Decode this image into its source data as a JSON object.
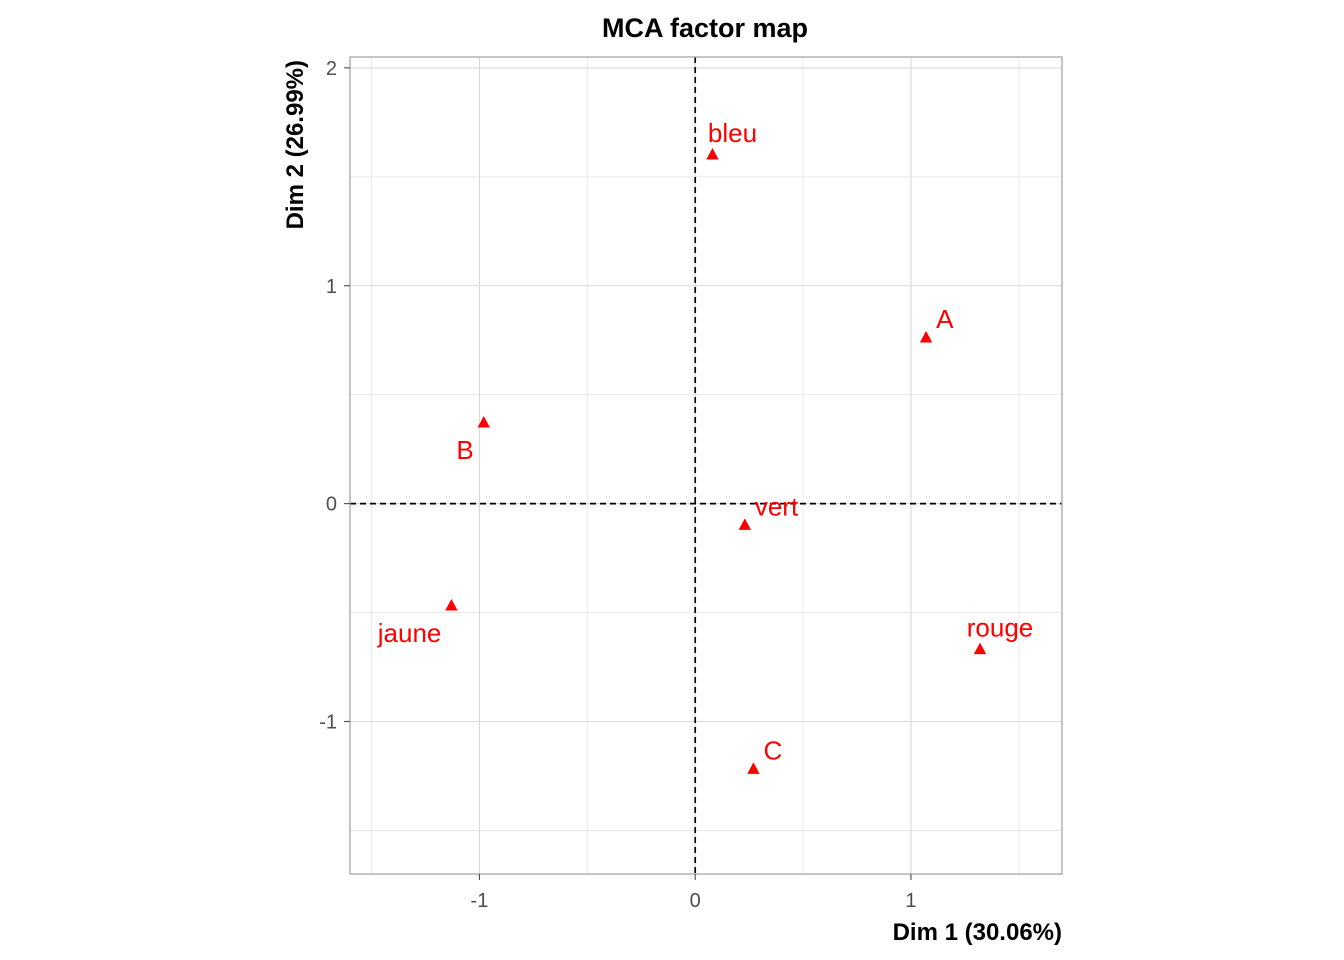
{
  "chart_data": {
    "type": "scatter",
    "title": "MCA factor map",
    "xlabel": "Dim 1 (30.06%)",
    "ylabel": "Dim 2 (26.99%)",
    "xlim": [
      -1.6,
      1.7
    ],
    "ylim": [
      -1.7,
      2.05
    ],
    "x_ticks": [
      -1,
      0,
      1
    ],
    "x_tick_labels": [
      "-1",
      "0",
      "1"
    ],
    "y_ticks": [
      -1,
      0,
      1,
      2
    ],
    "y_tick_labels": [
      "-1",
      "0",
      "1",
      "2"
    ],
    "x_minor": [
      -1.5,
      -0.5,
      0.5,
      1.5
    ],
    "y_minor": [
      -1.5,
      -0.5,
      0.5,
      1.5
    ],
    "grid": true,
    "reference_lines": {
      "x": 0,
      "y": 0,
      "style": "dashed"
    },
    "marker": "triangle",
    "color": "#ff0000",
    "points": [
      {
        "label": "bleu",
        "x": 0.08,
        "y": 1.6,
        "label_pos": "above"
      },
      {
        "label": "A",
        "x": 1.07,
        "y": 0.76,
        "label_pos": "above-right"
      },
      {
        "label": "B",
        "x": -0.98,
        "y": 0.37,
        "label_pos": "below-left"
      },
      {
        "label": "vert",
        "x": 0.23,
        "y": -0.1,
        "label_pos": "above-right"
      },
      {
        "label": "jaune",
        "x": -1.13,
        "y": -0.47,
        "label_pos": "below-left"
      },
      {
        "label": "rouge",
        "x": 1.32,
        "y": -0.67,
        "label_pos": "above"
      },
      {
        "label": "C",
        "x": 0.27,
        "y": -1.22,
        "label_pos": "above-right"
      }
    ]
  }
}
